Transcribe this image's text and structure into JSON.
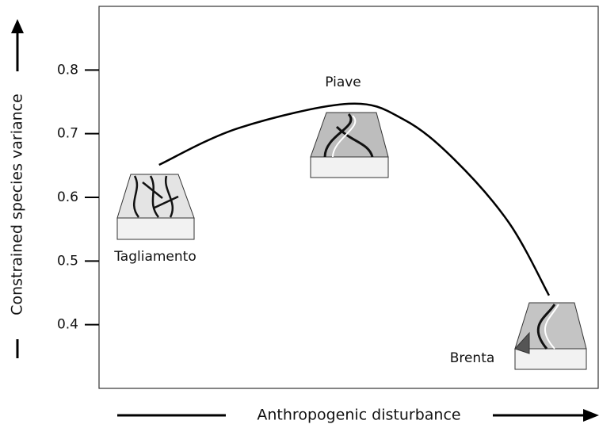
{
  "chart_data": {
    "type": "line",
    "y_label": "Constrained species variance",
    "x_label": "Anthropogenic disturbance",
    "x": [
      0.12,
      0.28,
      0.5,
      0.61,
      0.71,
      0.82,
      0.9
    ],
    "values": [
      0.651,
      0.709,
      0.747,
      0.722,
      0.66,
      0.56,
      0.446
    ],
    "color": "#000000",
    "xlim": [
      0,
      1
    ],
    "ylim": [
      0.3,
      0.9
    ],
    "yticks": [
      0.4,
      0.5,
      0.6,
      0.7,
      0.8
    ],
    "annotations": [
      "Tagliamento",
      "Piave",
      "Brenta"
    ]
  }
}
